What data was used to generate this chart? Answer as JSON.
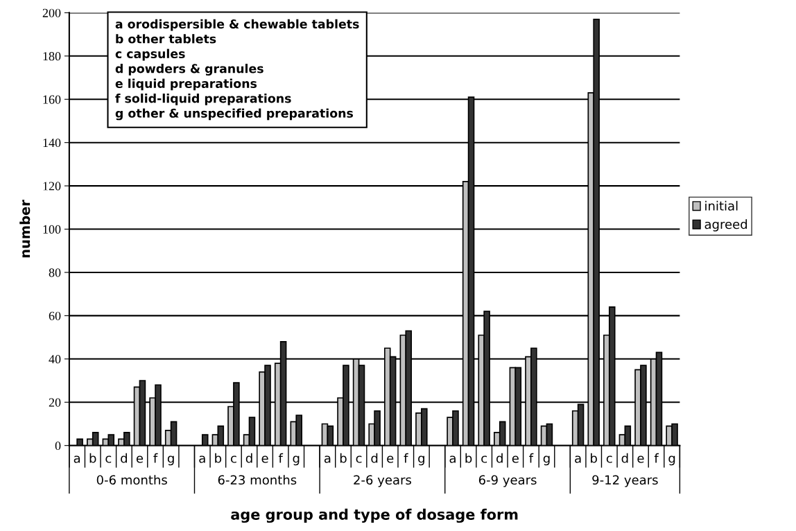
{
  "chart_data": {
    "type": "bar",
    "xlabel": "age group and type of dosage form",
    "ylabel": "number",
    "categories": [
      "a",
      "b",
      "c",
      "d",
      "e",
      "f",
      "g",
      null,
      "a",
      "b",
      "c",
      "d",
      "e",
      "f",
      "g",
      null,
      "a",
      "b",
      "c",
      "d",
      "e",
      "f",
      "g",
      null,
      "a",
      "b",
      "c",
      "d",
      "e",
      "f",
      "g",
      null,
      "a",
      "b",
      "c",
      "d",
      "e",
      "f",
      "g"
    ],
    "series": [
      {
        "name": "initial",
        "color": "#c0c0c0",
        "values": [
          null,
          3,
          3,
          3,
          27,
          22,
          7,
          null,
          null,
          5,
          18,
          5,
          34,
          38,
          11,
          null,
          10,
          22,
          40,
          10,
          45,
          51,
          15,
          null,
          13,
          122,
          51,
          6,
          36,
          41,
          9,
          null,
          16,
          163,
          51,
          5,
          35,
          40,
          9
        ]
      },
      {
        "name": "agreed",
        "color": "#333333",
        "values": [
          3,
          6,
          5,
          6,
          30,
          28,
          11,
          null,
          5,
          9,
          29,
          13,
          37,
          48,
          14,
          null,
          9,
          37,
          37,
          16,
          41,
          53,
          17,
          null,
          16,
          161,
          62,
          11,
          36,
          45,
          10,
          null,
          19,
          197,
          64,
          9,
          37,
          43,
          10
        ]
      }
    ],
    "annotations": [
      "a orodispersible & chewable tablets\nb other tablets\nc capsules\nd powders & granules\ne liquid preparations\nf solid-liquid preparations\ng other & unspecified preparations",
      "0-6 months",
      "6-23 months",
      "2-6 years",
      "6-9 years",
      "9-12 years"
    ],
    "ylim": [
      0,
      200
    ],
    "yticks": [
      0,
      20,
      40,
      60,
      80,
      100,
      120,
      140,
      160,
      180,
      200
    ],
    "grid": "y",
    "legend": "right"
  }
}
